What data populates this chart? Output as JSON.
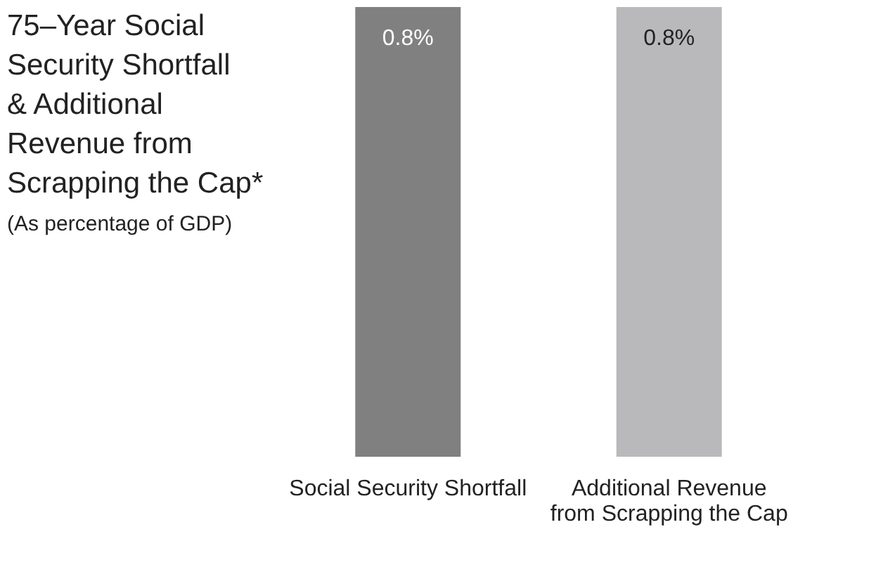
{
  "chart_data": {
    "type": "bar",
    "title": "75–Year Social Security Shortfall & Additional Revenue from Scrapping the Cap*",
    "subtitle": "(As percentage of GDP)",
    "categories": [
      "Social Security Shortfall",
      "Additional Revenue from Scrapping the Cap"
    ],
    "values": [
      0.8,
      0.8
    ],
    "colors": [
      "#808080",
      "#b9b9bb"
    ],
    "value_labels": [
      "0.8%",
      "0.8%"
    ]
  }
}
